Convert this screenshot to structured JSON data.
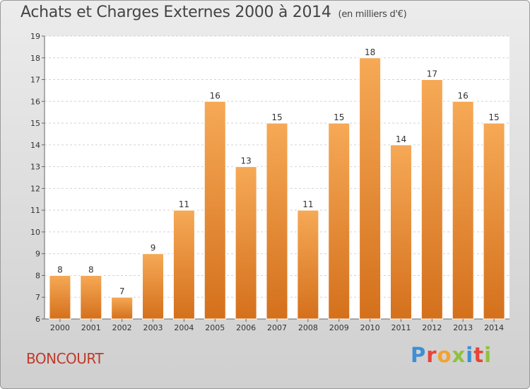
{
  "header": {
    "title": "Achats et Charges Externes 2000 à 2014",
    "unit": "(en milliers d'€)"
  },
  "footer": {
    "commune": "BONCOURT",
    "logo_text": "Proxiti",
    "logo_colors": [
      "#3d8fd6",
      "#e8443a",
      "#f2a32e",
      "#8fc13e",
      "#3d8fd6",
      "#e8443a",
      "#8fc13e"
    ]
  },
  "colors": {
    "bar_light": "#f6a956",
    "bar_dark": "#d4701c",
    "commune_text": "#c0392b"
  },
  "chart_data": {
    "type": "bar",
    "title": "Achats et Charges Externes 2000 à 2014",
    "subtitle": "(en milliers d'€)",
    "categories": [
      "2000",
      "2001",
      "2002",
      "2003",
      "2004",
      "2005",
      "2006",
      "2007",
      "2008",
      "2009",
      "2010",
      "2011",
      "2012",
      "2013",
      "2014"
    ],
    "values": [
      8,
      8,
      7,
      9,
      11,
      16,
      13,
      15,
      11,
      15,
      18,
      14,
      17,
      16,
      15
    ],
    "data_labels": [
      "8",
      "8",
      "7",
      "9",
      "11",
      "16",
      "13",
      "15",
      "11",
      "15",
      "18",
      "14",
      "17",
      "16",
      "15"
    ],
    "y_ticks": [
      "6",
      "7",
      "8",
      "9",
      "10",
      "11",
      "12",
      "13",
      "14",
      "15",
      "16",
      "17",
      "18",
      "19"
    ],
    "xlabel": "",
    "ylabel": "",
    "ylim": [
      6,
      19
    ],
    "grid": true,
    "legend": "none"
  }
}
